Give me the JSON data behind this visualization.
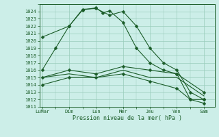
{
  "background_color": "#cceee8",
  "grid_color": "#99ccbb",
  "line_color": "#1a5c28",
  "xlabel": "Pression niveau de la mer( hPa )",
  "ylim": [
    1011,
    1025
  ],
  "xlim": [
    -0.2,
    12.8
  ],
  "yticks": [
    1011,
    1012,
    1013,
    1014,
    1015,
    1016,
    1017,
    1018,
    1019,
    1020,
    1021,
    1022,
    1023,
    1024
  ],
  "xtick_labels": [
    "LuMar",
    "Dim",
    "Lun",
    "Mer",
    "Jeu",
    "Ven",
    "Sam"
  ],
  "xtick_positions": [
    0,
    2,
    4,
    6,
    8,
    10,
    12
  ],
  "lines": [
    {
      "x": [
        0,
        1,
        2,
        3,
        4,
        4.5,
        5,
        6,
        7,
        8,
        9,
        10,
        11,
        12
      ],
      "y": [
        1016,
        1019,
        1022,
        1024.2,
        1024.5,
        1023.8,
        1024.1,
        1022.5,
        1019,
        1017,
        1016,
        1015.5,
        1012,
        1012
      ],
      "marker": true
    },
    {
      "x": [
        0,
        2,
        4,
        6,
        8,
        10,
        12
      ],
      "y": [
        1015,
        1016,
        1015.5,
        1016.5,
        1016,
        1015.5,
        1013
      ],
      "marker": true
    },
    {
      "x": [
        0,
        2,
        4,
        6,
        8,
        10,
        12
      ],
      "y": [
        1015,
        1015.5,
        1015,
        1016,
        1015,
        1015,
        1012.5
      ],
      "marker": false
    },
    {
      "x": [
        0,
        2,
        4,
        6,
        8,
        10,
        11,
        12
      ],
      "y": [
        1014,
        1015,
        1015,
        1015.5,
        1014.5,
        1013.5,
        1012,
        1011.5
      ],
      "marker": true
    },
    {
      "x": [
        0,
        2,
        3,
        4,
        5,
        6,
        7,
        8,
        9,
        10,
        11,
        12
      ],
      "y": [
        1020.5,
        1022,
        1024.3,
        1024.4,
        1023.5,
        1024,
        1022,
        1019,
        1017,
        1016,
        1013,
        1012
      ],
      "marker": true
    }
  ],
  "markersize": 2.5,
  "linewidth": 0.8,
  "tick_fontsize": 5.0,
  "xlabel_fontsize": 6.0
}
